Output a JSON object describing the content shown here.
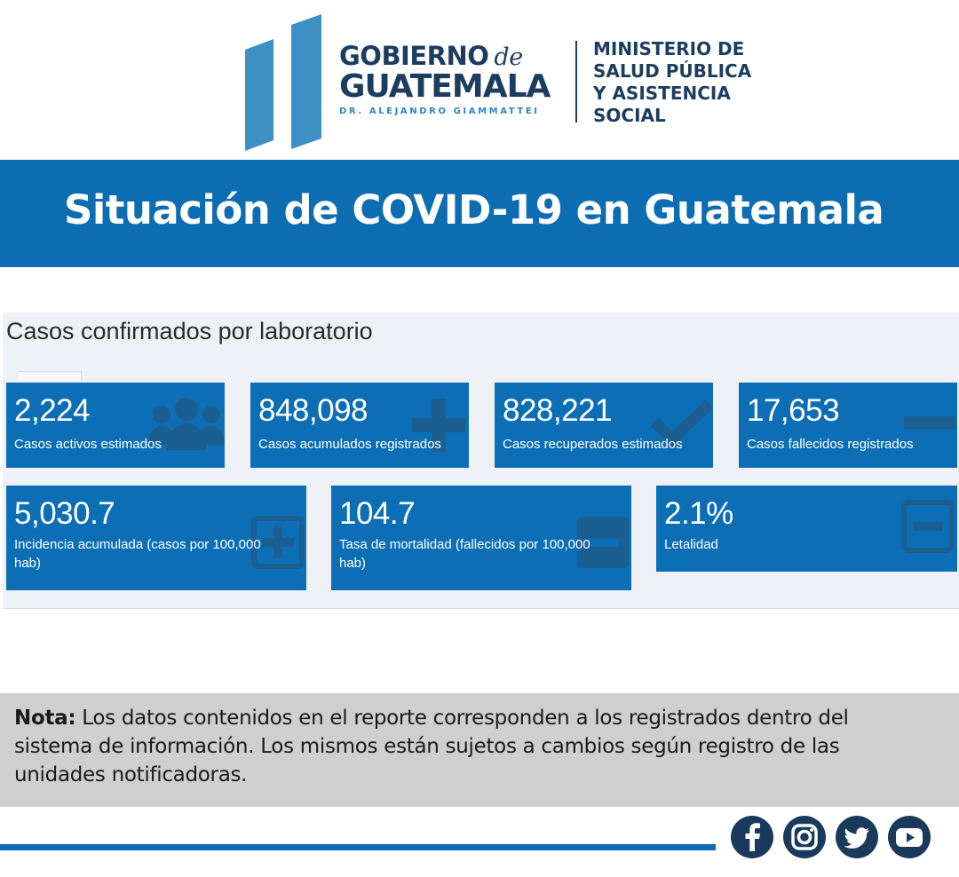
{
  "header": {
    "gov_line1": "GOBIERNO",
    "gov_de": "de",
    "gov_line2": "GUATEMALA",
    "gov_line3": "DR. ALEJANDRO GIAMMATTEI",
    "ministry_lines": [
      "MINISTERIO DE",
      "SALUD PÚBLICA",
      "Y ASISTENCIA",
      "SOCIAL"
    ]
  },
  "title": "Situación de COVID-19 en Guatemala",
  "panel": {
    "title": "Casos confirmados por laboratorio",
    "cards": [
      {
        "value": "2,224",
        "label": "Casos activos estimados",
        "icon": "users-icon"
      },
      {
        "value": "848,098",
        "label": "Casos acumulados registrados",
        "icon": "plus-icon"
      },
      {
        "value": "828,221",
        "label": "Casos recuperados estimados",
        "icon": "check-icon"
      },
      {
        "value": "17,653",
        "label": "Casos fallecidos registrados",
        "icon": "minus-icon"
      },
      {
        "value": "5,030.7",
        "label": "Incidencia acumulada (casos por 100,000 hab)",
        "icon": "plus-square-icon"
      },
      {
        "value": "104.7",
        "label": "Tasa de mortalidad (fallecidos por 100,000 hab)",
        "icon": "minus-square-icon"
      },
      {
        "value": "2.1%",
        "label": "Letalidad",
        "icon": "minus-square-outline-icon"
      }
    ]
  },
  "note": {
    "bold": "Nota:",
    "text": " Los datos contenidos en el reporte corresponden a los registrados dentro del sistema de información. Los mismos están sujetos a cambios según registro de las unidades notificadoras."
  },
  "social": [
    "facebook-icon",
    "instagram-icon",
    "twitter-icon",
    "youtube-icon"
  ],
  "colors": {
    "primary_blue": "#0d6db2",
    "card_blue": "#0c6fb6",
    "navy": "#1c3d5f",
    "note_gray": "#cfcfcf"
  }
}
